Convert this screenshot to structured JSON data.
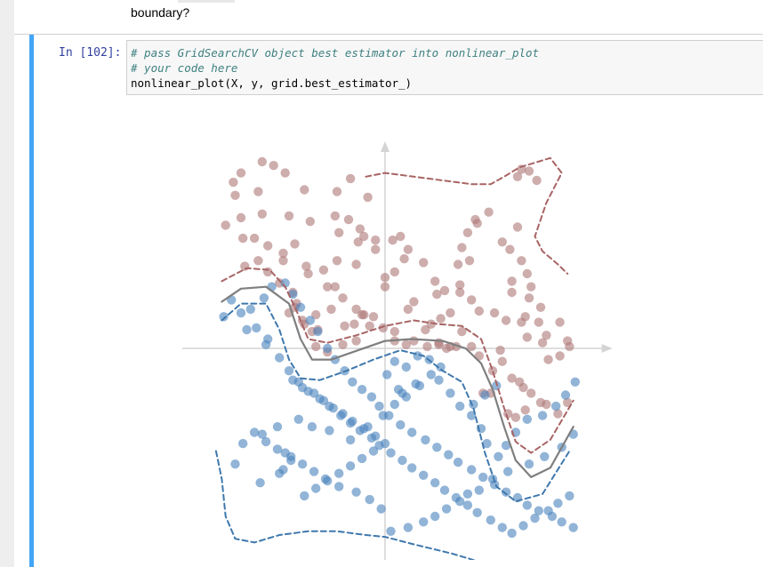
{
  "markdown": {
    "text": "boundary?"
  },
  "cell": {
    "prompt": "In [102]:",
    "code_lines": [
      "# pass GridSearchCV object best estimator into nonlinear_plot",
      "# your code here",
      "nonlinear_plot(X, y, grid.best_estimator_)"
    ]
  },
  "chart_data": {
    "type": "scatter",
    "title": "",
    "xlabel": "",
    "ylabel": "",
    "xlim": [
      -1.0,
      1.1
    ],
    "ylim": [
      -1.05,
      1.1
    ],
    "grid": false,
    "axes_style": "cross-through-origin-with-arrows",
    "colors": {
      "class_0": "#b07a7a",
      "class_1": "#4d86bf",
      "decision_boundary": "#7f7f7f",
      "margin_class_0": "#a86464",
      "margin_class_1": "#3f78ad",
      "axes": "#d4d4d4"
    },
    "series": [
      {
        "class": 0,
        "x": [
          -0.64,
          -0.58,
          -0.75,
          -0.79,
          -0.78,
          -0.66,
          -0.52,
          -0.42,
          -0.25,
          -0.18,
          -0.09,
          -0.75,
          -0.83,
          -0.64,
          -0.5,
          -0.39,
          -0.26,
          -0.19,
          -0.13,
          -0.11,
          -0.14,
          -0.05,
          -0.24,
          -0.74,
          -0.68,
          -0.61,
          -0.53,
          -0.47,
          -0.53,
          -0.41,
          -0.4,
          -0.32,
          -0.25,
          -0.15,
          -0.05,
          0.04,
          0.08,
          0.12,
          0.1,
          0.0,
          0.05,
          0.2,
          0.26,
          0.27,
          0.31,
          0.39,
          0.38,
          0.44,
          0.4,
          0.43,
          0.48,
          0.54,
          0.47,
          0.71,
          0.69,
          0.75,
          0.79,
          0.69,
          0.61,
          0.65,
          0.71,
          0.74,
          0.66,
          0.66,
          0.76,
          0.75,
          0.81,
          0.73,
          0.8,
          0.91,
          0.74,
          0.82,
          0.95,
          0.96,
          0.91,
          0.85,
          0.84,
          0.71,
          0.63,
          0.57,
          0.49,
          0.45,
          0.39,
          0.34,
          0.29,
          0.24,
          0.21,
          0.28,
          0.34,
          0.4,
          0.45,
          0.49,
          0.56,
          0.7,
          0.76,
          0.84,
          0.9,
          0.95,
          0.81,
          0.72,
          0.66,
          0.61,
          0.6,
          0.64,
          0.68,
          0.73,
          0.55,
          0.51,
          -0.73,
          -0.66,
          -0.61,
          -0.55,
          -0.48,
          -0.46,
          -0.5,
          -0.42,
          -0.35,
          -0.36,
          -0.3,
          -0.22,
          -0.15,
          -0.16,
          -0.12,
          -0.08,
          -0.01,
          0.05,
          0.11,
          0.15,
          0.22,
          0.28,
          0.32,
          0.37,
          -0.3,
          -0.26,
          -0.22,
          -0.15,
          -0.11,
          -0.06,
          0.05,
          -0.43,
          -0.38,
          -0.47,
          -0.36,
          -0.28,
          -0.21,
          0.12,
          0.15,
          0.0
        ],
        "y": [
          1.0,
          0.98,
          0.94,
          0.89,
          0.82,
          0.84,
          0.94,
          0.85,
          0.84,
          0.91,
          0.81,
          0.7,
          0.66,
          0.72,
          0.71,
          0.68,
          0.71,
          0.69,
          0.64,
          0.6,
          0.57,
          0.58,
          0.62,
          0.59,
          0.59,
          0.55,
          0.51,
          0.56,
          0.47,
          0.44,
          0.4,
          0.42,
          0.47,
          0.45,
          0.53,
          0.58,
          0.6,
          0.53,
          0.48,
          0.38,
          0.41,
          0.46,
          0.36,
          0.29,
          0.31,
          0.34,
          0.45,
          0.47,
          0.54,
          0.62,
          0.67,
          0.73,
          0.69,
          0.96,
          0.92,
          0.95,
          0.9,
          0.65,
          0.57,
          0.53,
          0.47,
          0.4,
          0.36,
          0.3,
          0.33,
          0.27,
          0.22,
          0.17,
          0.14,
          0.14,
          0.06,
          0.03,
          0.04,
          0.01,
          -0.04,
          -0.06,
          0.07,
          0.14,
          0.15,
          0.19,
          0.2,
          0.26,
          0.3,
          0.19,
          0.16,
          0.13,
          0.1,
          0.03,
          0.01,
          0.09,
          0.01,
          -0.04,
          -0.12,
          -0.18,
          -0.24,
          -0.3,
          -0.35,
          -0.29,
          -0.29,
          -0.21,
          -0.16,
          -0.07,
          -0.01,
          -0.35,
          -0.37,
          -0.33,
          -0.24,
          -0.24,
          0.44,
          0.47,
          0.41,
          0.35,
          0.3,
          0.24,
          0.19,
          0.13,
          0.1,
          0.01,
          -0.02,
          0.02,
          0.04,
          0.13,
          0.18,
          0.12,
          0.11,
          0.04,
          0.02,
          0.04,
          0.01,
          0.02,
          0.0,
          0.01,
          0.33,
          0.33,
          0.27,
          0.21,
          0.18,
          0.17,
          0.09,
          0.15,
          0.09,
          0.22,
          0.18,
          0.21,
          0.12,
          0.21,
          0.25,
          0.33
        ],
        "name": ""
      },
      {
        "class": 1,
        "x": [
          -0.78,
          -0.65,
          -0.53,
          -0.55,
          -0.52,
          -0.49,
          -0.74,
          -0.64,
          -0.56,
          -0.45,
          -0.38,
          -0.29,
          -0.18,
          -0.09,
          -0.01,
          0.05,
          0.09,
          0.16,
          0.24,
          0.29,
          0.18,
          0.11,
          0.07,
          0.01,
          0.05,
          0.11,
          0.17,
          0.23,
          0.28,
          0.34,
          0.39,
          0.45,
          0.5,
          0.53,
          0.59,
          0.63,
          0.68,
          0.74,
          0.82,
          0.89,
          0.94,
          0.99,
          0.98,
          0.92,
          0.83,
          0.75,
          0.64,
          0.56,
          0.49,
          0.43,
          0.39,
          0.32,
          0.26,
          0.2,
          0.12,
          0.03,
          -0.02,
          -0.08,
          -0.15,
          -0.24,
          -0.31,
          -0.37,
          -0.43,
          -0.49,
          -0.56,
          -0.62,
          -0.68,
          -0.72,
          -0.7,
          -0.63,
          -0.59,
          -0.52,
          -0.48,
          -0.44,
          -0.39,
          -0.35,
          -0.3,
          -0.26,
          -0.21,
          -0.17,
          -0.12,
          -0.07,
          -0.03,
          0.02,
          0.08,
          0.14,
          0.21,
          0.27,
          0.33,
          0.38,
          0.45,
          0.51,
          0.57,
          0.63,
          0.69,
          0.74,
          0.8,
          0.87,
          0.92,
          0.98,
          -0.62,
          -0.55,
          -0.5,
          -0.45,
          -0.4,
          -0.34,
          -0.29,
          -0.23,
          -0.18,
          -0.13,
          -0.07,
          -0.03,
          0.03,
          0.09,
          0.14,
          0.2,
          0.26,
          0.31,
          0.37,
          0.43,
          0.48,
          0.55,
          0.61,
          0.66,
          0.72,
          0.78,
          0.85,
          0.9,
          0.96,
          -0.48,
          -0.43,
          -0.37,
          -0.32,
          -0.27,
          -0.22,
          -0.17,
          -0.11,
          -0.05,
          0.0,
          -0.06,
          -0.12,
          -0.18,
          -0.24,
          -0.3,
          -0.36,
          -0.42,
          0.58,
          0.52,
          0.46,
          -0.84,
          -0.8,
          -0.75,
          -0.67,
          -0.61
        ],
        "y": [
          -0.62,
          -0.72,
          -0.65,
          -0.67,
          -0.56,
          -0.6,
          -0.51,
          -0.46,
          -0.42,
          -0.38,
          -0.42,
          -0.44,
          -0.49,
          -0.42,
          -0.36,
          -0.3,
          -0.24,
          -0.19,
          -0.14,
          -0.1,
          -0.2,
          -0.26,
          -0.22,
          -0.14,
          -0.07,
          -0.1,
          -0.04,
          -0.06,
          -0.17,
          -0.24,
          -0.31,
          -0.36,
          -0.43,
          -0.51,
          -0.58,
          -0.52,
          -0.45,
          -0.38,
          -0.36,
          -0.31,
          -0.25,
          -0.18,
          -0.46,
          -0.53,
          -0.58,
          -0.62,
          -0.66,
          -0.7,
          -0.76,
          -0.78,
          -0.82,
          -0.86,
          -0.9,
          -0.93,
          -0.96,
          -0.98,
          -0.86,
          -0.81,
          -0.77,
          -0.74,
          -0.7,
          -0.66,
          -0.62,
          -0.58,
          -0.54,
          -0.5,
          -0.45,
          0.1,
          0.21,
          0.27,
          0.33,
          0.35,
          0.29,
          0.22,
          0.15,
          0.09,
          0.0,
          -0.06,
          -0.12,
          -0.18,
          -0.22,
          -0.26,
          -0.31,
          -0.36,
          -0.41,
          -0.45,
          -0.49,
          -0.53,
          -0.57,
          -0.61,
          -0.65,
          -0.69,
          -0.73,
          -0.77,
          -0.8,
          -0.84,
          -0.87,
          -0.9,
          -0.93,
          -0.96,
          0.02,
          -0.05,
          -0.12,
          -0.18,
          -0.23,
          -0.27,
          -0.31,
          -0.36,
          -0.4,
          -0.44,
          -0.48,
          -0.52,
          -0.56,
          -0.6,
          -0.64,
          -0.68,
          -0.72,
          -0.76,
          -0.8,
          -0.84,
          -0.88,
          -0.92,
          -0.96,
          -0.99,
          -0.95,
          -0.91,
          -0.87,
          -0.83,
          -0.79,
          -0.17,
          -0.21,
          -0.24,
          -0.28,
          -0.32,
          -0.35,
          -0.39,
          -0.43,
          -0.47,
          -0.51,
          -0.55,
          -0.59,
          -0.63,
          -0.67,
          -0.71,
          -0.75,
          -0.79,
          -0.2,
          -0.25,
          -0.3,
          0.17,
          0.26,
          0.19,
          0.11,
          0.05
        ]
      }
    ],
    "decision_boundary": {
      "x": [
        -0.85,
        -0.75,
        -0.62,
        -0.5,
        -0.44,
        -0.38,
        -0.28,
        -0.14,
        0.0,
        0.14,
        0.3,
        0.42,
        0.5,
        0.56,
        0.62,
        0.68,
        0.76,
        0.86,
        0.98
      ],
      "y": [
        0.25,
        0.32,
        0.33,
        0.24,
        0.05,
        -0.06,
        -0.06,
        -0.01,
        0.04,
        0.05,
        0.04,
        0.0,
        -0.08,
        -0.22,
        -0.42,
        -0.6,
        -0.69,
        -0.64,
        -0.42
      ]
    },
    "margin_class_0": {
      "x": [
        -0.85,
        -0.72,
        -0.6,
        -0.52,
        -0.46,
        -0.4,
        -0.3,
        -0.15,
        0.0,
        0.15,
        0.28,
        0.4,
        0.5,
        0.56,
        0.62,
        0.68,
        0.76,
        0.86,
        0.98
      ],
      "y": [
        0.36,
        0.43,
        0.42,
        0.33,
        0.2,
        0.05,
        0.03,
        0.07,
        0.12,
        0.15,
        0.13,
        0.12,
        0.05,
        -0.12,
        -0.32,
        -0.5,
        -0.56,
        -0.49,
        -0.28
      ]
    },
    "margin_class_0_top": {
      "x": [
        -0.1,
        0.0,
        0.15,
        0.3,
        0.45,
        0.55,
        0.62,
        0.7,
        0.86,
        0.92,
        0.84,
        0.78,
        0.82,
        0.9,
        0.95
      ],
      "y": [
        0.92,
        0.94,
        0.92,
        0.9,
        0.88,
        0.88,
        0.92,
        0.97,
        1.02,
        0.94,
        0.78,
        0.6,
        0.52,
        0.45,
        0.4
      ]
    },
    "margin_class_1": {
      "x": [
        -0.85,
        -0.75,
        -0.62,
        -0.55,
        -0.5,
        -0.44,
        -0.34,
        -0.2,
        -0.06,
        0.08,
        0.2,
        0.3,
        0.4,
        0.46,
        0.52,
        0.58,
        0.68,
        0.82,
        0.96
      ],
      "y": [
        0.15,
        0.24,
        0.24,
        0.1,
        -0.06,
        -0.16,
        -0.17,
        -0.12,
        -0.06,
        -0.01,
        -0.04,
        -0.12,
        -0.18,
        -0.32,
        -0.56,
        -0.74,
        -0.82,
        -0.78,
        -0.55
      ]
    },
    "margin_class_1_bottom": {
      "x": [
        -0.88,
        -0.85,
        -0.83,
        -0.78,
        -0.68,
        -0.55,
        -0.4,
        -0.25,
        -0.1,
        0.0,
        0.15,
        0.35,
        0.48
      ],
      "y": [
        -0.55,
        -0.7,
        -0.9,
        -1.02,
        -1.04,
        -1.0,
        -0.98,
        -0.98,
        -1.0,
        -1.01,
        -1.05,
        -1.1,
        -1.14
      ]
    }
  }
}
